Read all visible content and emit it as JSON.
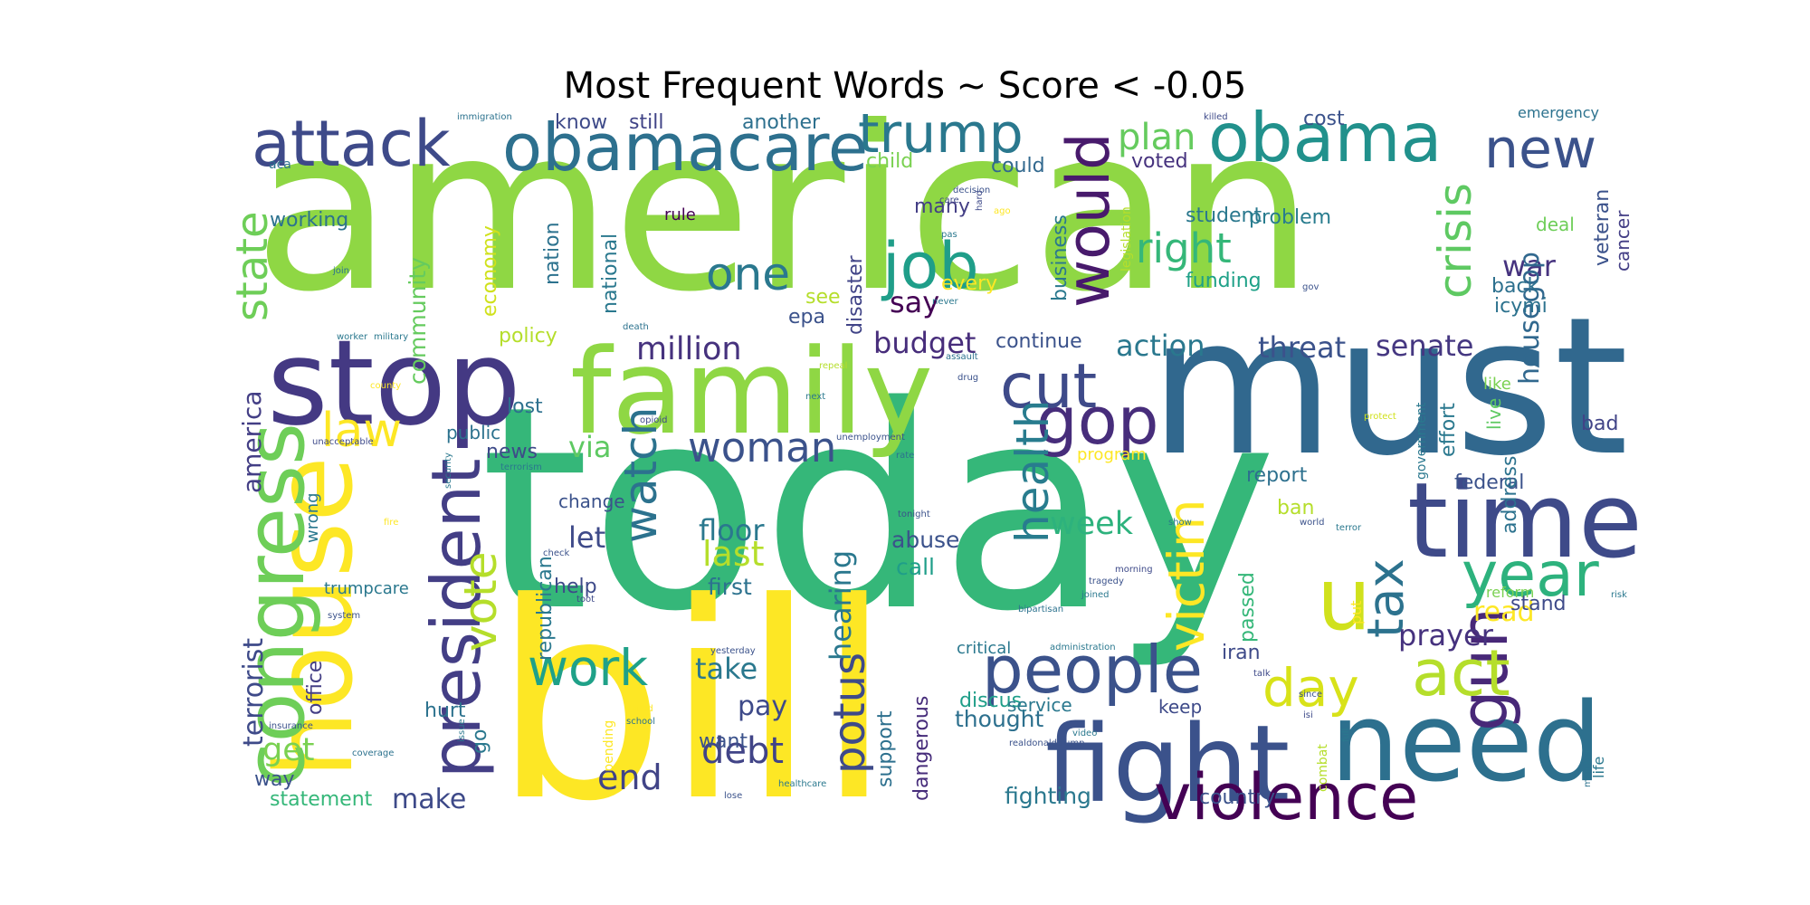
{
  "title": "Most Frequent Words ~ Score < -0.05",
  "chart_data": {
    "type": "wordcloud",
    "title": "Most Frequent Words ~ Score < -0.05",
    "words": [
      {
        "text": "american",
        "color": "#8fd744"
      },
      {
        "text": "today",
        "color": "#35b779"
      },
      {
        "text": "must",
        "color": "#31688e"
      },
      {
        "text": "bill",
        "color": "#fde725"
      },
      {
        "text": "family",
        "color": "#8fd744"
      },
      {
        "text": "stop",
        "color": "#443983"
      },
      {
        "text": "house",
        "color": "#fde725"
      },
      {
        "text": "time",
        "color": "#3e4a89"
      },
      {
        "text": "need",
        "color": "#2d708e"
      },
      {
        "text": "fight",
        "color": "#3b528b"
      },
      {
        "text": "obamacare",
        "color": "#2d708e"
      },
      {
        "text": "congress",
        "color": "#6ece58"
      },
      {
        "text": "attack",
        "color": "#3e4a89"
      },
      {
        "text": "obama",
        "color": "#21918c"
      },
      {
        "text": "people",
        "color": "#3b528b"
      },
      {
        "text": "president",
        "color": "#433e85"
      },
      {
        "text": "gun",
        "color": "#482878"
      },
      {
        "text": "u",
        "color": "#d0e11c"
      },
      {
        "text": "violence",
        "color": "#440154"
      },
      {
        "text": "trump",
        "color": "#2a788e"
      },
      {
        "text": "job",
        "color": "#1f9e89"
      },
      {
        "text": "new",
        "color": "#3b528b"
      },
      {
        "text": "would",
        "color": "#481a6c"
      },
      {
        "text": "gop",
        "color": "#472d7b"
      },
      {
        "text": "cut",
        "color": "#3e4a89"
      },
      {
        "text": "year",
        "color": "#2db27d"
      },
      {
        "text": "act",
        "color": "#b5de2b"
      },
      {
        "text": "work",
        "color": "#1fa188"
      },
      {
        "text": "watch",
        "color": "#2c728e"
      },
      {
        "text": "health",
        "color": "#287c8e"
      },
      {
        "text": "crisis",
        "color": "#5ec962"
      },
      {
        "text": "day",
        "color": "#d8e219"
      },
      {
        "text": "tax",
        "color": "#2c728e"
      },
      {
        "text": "victim",
        "color": "#fde725"
      },
      {
        "text": "woman",
        "color": "#3b528b"
      },
      {
        "text": "state",
        "color": "#6ece58"
      },
      {
        "text": "law",
        "color": "#fde725"
      },
      {
        "text": "vote",
        "color": "#b5de2b"
      },
      {
        "text": "right",
        "color": "#35b779"
      },
      {
        "text": "one",
        "color": "#2a788e"
      },
      {
        "text": "potus",
        "color": "#3e4a89"
      },
      {
        "text": "debt",
        "color": "#414487"
      },
      {
        "text": "million",
        "color": "#46327e"
      },
      {
        "text": "plan",
        "color": "#65cb5e"
      },
      {
        "text": "budget",
        "color": "#472d7b"
      },
      {
        "text": "threat",
        "color": "#3b528b"
      },
      {
        "text": "senate",
        "color": "#453781"
      },
      {
        "text": "action",
        "color": "#2a788e"
      },
      {
        "text": "make",
        "color": "#3e4a89"
      },
      {
        "text": "end",
        "color": "#414487"
      },
      {
        "text": "take",
        "color": "#2a788e"
      },
      {
        "text": "pay",
        "color": "#3e4a89"
      },
      {
        "text": "get",
        "color": "#7ad151"
      },
      {
        "text": "prayer",
        "color": "#46327e"
      },
      {
        "text": "read",
        "color": "#fde725"
      },
      {
        "text": "week",
        "color": "#2db27d"
      },
      {
        "text": "last",
        "color": "#b5de2b"
      },
      {
        "text": "let",
        "color": "#3e4a89"
      },
      {
        "text": "via",
        "color": "#5ec962"
      },
      {
        "text": "hearing",
        "color": "#2a788e"
      },
      {
        "text": "say",
        "color": "#440154"
      },
      {
        "text": "war",
        "color": "#46337f"
      },
      {
        "text": "housegop",
        "color": "#31688e"
      },
      {
        "text": "terrorist",
        "color": "#3e4a89"
      },
      {
        "text": "america",
        "color": "#433e85"
      },
      {
        "text": "community",
        "color": "#65cb5e"
      },
      {
        "text": "floor",
        "color": "#2a788e"
      },
      {
        "text": "abuse",
        "color": "#3b528b"
      },
      {
        "text": "call",
        "color": "#1f9e89"
      },
      {
        "text": "first",
        "color": "#2c728e"
      },
      {
        "text": "help",
        "color": "#3e4a89"
      },
      {
        "text": "want",
        "color": "#3b528b"
      },
      {
        "text": "support",
        "color": "#2d708e"
      },
      {
        "text": "dangerous",
        "color": "#472d7b"
      },
      {
        "text": "thought",
        "color": "#2d708e"
      },
      {
        "text": "discus",
        "color": "#1f9e89"
      },
      {
        "text": "fighting",
        "color": "#2a788e"
      },
      {
        "text": "country",
        "color": "#3b528b"
      },
      {
        "text": "statement",
        "color": "#35b779"
      },
      {
        "text": "working",
        "color": "#2c728e"
      },
      {
        "text": "know",
        "color": "#3e4a89"
      },
      {
        "text": "still",
        "color": "#414487"
      },
      {
        "text": "another",
        "color": "#2d708e"
      },
      {
        "text": "child",
        "color": "#7ad151"
      },
      {
        "text": "could",
        "color": "#31688e"
      },
      {
        "text": "voted",
        "color": "#46327e"
      },
      {
        "text": "cost",
        "color": "#3b528b"
      },
      {
        "text": "emergency",
        "color": "#2c728e"
      },
      {
        "text": "many",
        "color": "#433e85"
      },
      {
        "text": "every",
        "color": "#fde725"
      },
      {
        "text": "student",
        "color": "#2a788e"
      },
      {
        "text": "problem",
        "color": "#287c8e"
      },
      {
        "text": "funding",
        "color": "#1fa188"
      },
      {
        "text": "business",
        "color": "#2a788e"
      },
      {
        "text": "continue",
        "color": "#3b528b"
      },
      {
        "text": "policy",
        "color": "#b5de2b"
      },
      {
        "text": "economy",
        "color": "#d0e11c"
      },
      {
        "text": "nation",
        "color": "#2c728e"
      },
      {
        "text": "national",
        "color": "#2a788e"
      },
      {
        "text": "disaster",
        "color": "#414487"
      },
      {
        "text": "epa",
        "color": "#3b528b"
      },
      {
        "text": "see",
        "color": "#b5de2b"
      },
      {
        "text": "lost",
        "color": "#2d708e"
      },
      {
        "text": "news",
        "color": "#3e4a89"
      },
      {
        "text": "public",
        "color": "#2c728e"
      },
      {
        "text": "republican",
        "color": "#2a788e"
      },
      {
        "text": "change",
        "color": "#3b528b"
      },
      {
        "text": "passed",
        "color": "#35b779"
      },
      {
        "text": "iran",
        "color": "#3e4a89"
      },
      {
        "text": "report",
        "color": "#2d708e"
      },
      {
        "text": "ban",
        "color": "#b5de2b"
      },
      {
        "text": "federal",
        "color": "#3b528b"
      },
      {
        "text": "address",
        "color": "#2c728e"
      },
      {
        "text": "stand",
        "color": "#3e4a89"
      },
      {
        "text": "bad",
        "color": "#414487"
      },
      {
        "text": "back",
        "color": "#2d708e"
      },
      {
        "text": "icymi",
        "color": "#2c728e"
      },
      {
        "text": "veteran",
        "color": "#3b528b"
      },
      {
        "text": "cancer",
        "color": "#433e85"
      },
      {
        "text": "deal",
        "color": "#6ece58"
      },
      {
        "text": "like",
        "color": "#7ad151"
      },
      {
        "text": "live",
        "color": "#5ec962"
      },
      {
        "text": "effort",
        "color": "#2a788e"
      },
      {
        "text": "hurt",
        "color": "#2c728e"
      },
      {
        "text": "go",
        "color": "#2a788e"
      },
      {
        "text": "way",
        "color": "#3b528b"
      },
      {
        "text": "office",
        "color": "#433e85"
      },
      {
        "text": "wrong",
        "color": "#2a788e"
      },
      {
        "text": "trumpcare",
        "color": "#2a788e"
      },
      {
        "text": "keep",
        "color": "#3e4a89"
      },
      {
        "text": "service",
        "color": "#2a788e"
      },
      {
        "text": "critical",
        "color": "#2a788e"
      },
      {
        "text": "reform",
        "color": "#7ad151"
      },
      {
        "text": "put",
        "color": "#fde725"
      },
      {
        "text": "rule",
        "color": "#440154"
      },
      {
        "text": "program",
        "color": "#fde725"
      },
      {
        "text": "legislation",
        "color": "#b5de2b"
      },
      {
        "text": "government",
        "color": "#2a788e"
      },
      {
        "text": "combat",
        "color": "#b5de2b"
      },
      {
        "text": "life",
        "color": "#2a788e"
      },
      {
        "text": "spending",
        "color": "#fde725"
      },
      {
        "text": "immigration",
        "color": "#2c728e"
      },
      {
        "text": "killed",
        "color": "#3e4a89"
      },
      {
        "text": "aca",
        "color": "#2c728e"
      },
      {
        "text": "join",
        "color": "#2c728e"
      },
      {
        "text": "decision",
        "color": "#3b528b"
      },
      {
        "text": "care",
        "color": "#3e4a89"
      },
      {
        "text": "hard",
        "color": "#3e4a89"
      },
      {
        "text": "pas",
        "color": "#2a788e"
      },
      {
        "text": "ago",
        "color": "#fde725"
      },
      {
        "text": "gov",
        "color": "#3b528b"
      },
      {
        "text": "never",
        "color": "#2a788e"
      },
      {
        "text": "death",
        "color": "#2c728e"
      },
      {
        "text": "worker",
        "color": "#2a788e"
      },
      {
        "text": "military",
        "color": "#2a788e"
      },
      {
        "text": "repeal",
        "color": "#b5de2b"
      },
      {
        "text": "drug",
        "color": "#3b528b"
      },
      {
        "text": "next",
        "color": "#2a788e"
      },
      {
        "text": "assault",
        "color": "#2c728e"
      },
      {
        "text": "county",
        "color": "#fde725"
      },
      {
        "text": "protect",
        "color": "#d0e11c"
      },
      {
        "text": "unacceptable",
        "color": "#3e4a89"
      },
      {
        "text": "unemployment",
        "color": "#3b528b"
      },
      {
        "text": "opioid",
        "color": "#3e4a89"
      },
      {
        "text": "terrorism",
        "color": "#2a788e"
      },
      {
        "text": "rate",
        "color": "#2c728e"
      },
      {
        "text": "security",
        "color": "#2a788e"
      },
      {
        "text": "fire",
        "color": "#fde725"
      },
      {
        "text": "check",
        "color": "#3b528b"
      },
      {
        "text": "toot",
        "color": "#3e4a89"
      },
      {
        "text": "system",
        "color": "#3b528b"
      },
      {
        "text": "tonight",
        "color": "#3b528b"
      },
      {
        "text": "morning",
        "color": "#3e4a89"
      },
      {
        "text": "tragedy",
        "color": "#3b528b"
      },
      {
        "text": "joined",
        "color": "#2a788e"
      },
      {
        "text": "bipartisan",
        "color": "#2c728e"
      },
      {
        "text": "yesterday",
        "color": "#3b528b"
      },
      {
        "text": "administration",
        "color": "#2a788e"
      },
      {
        "text": "show",
        "color": "#2a788e"
      },
      {
        "text": "world",
        "color": "#3b528b"
      },
      {
        "text": "terror",
        "color": "#2a788e"
      },
      {
        "text": "talk",
        "color": "#3e4a89"
      },
      {
        "text": "since",
        "color": "#3b528b"
      },
      {
        "text": "risk",
        "color": "#2a788e"
      },
      {
        "text": "insurance",
        "color": "#3b528b"
      },
      {
        "text": "coverage",
        "color": "#2c728e"
      },
      {
        "text": "issue",
        "color": "#2a788e"
      },
      {
        "text": "failed",
        "color": "#fde725"
      },
      {
        "text": "school",
        "color": "#2c728e"
      },
      {
        "text": "realdonaldtrump",
        "color": "#3b528b"
      },
      {
        "text": "video",
        "color": "#2a788e"
      },
      {
        "text": "isi",
        "color": "#3e4a89"
      },
      {
        "text": "full",
        "color": "#2a788e"
      },
      {
        "text": "member",
        "color": "#2c728e"
      },
      {
        "text": "lose",
        "color": "#3b528b"
      },
      {
        "text": "healthcare",
        "color": "#2a788e"
      }
    ]
  }
}
